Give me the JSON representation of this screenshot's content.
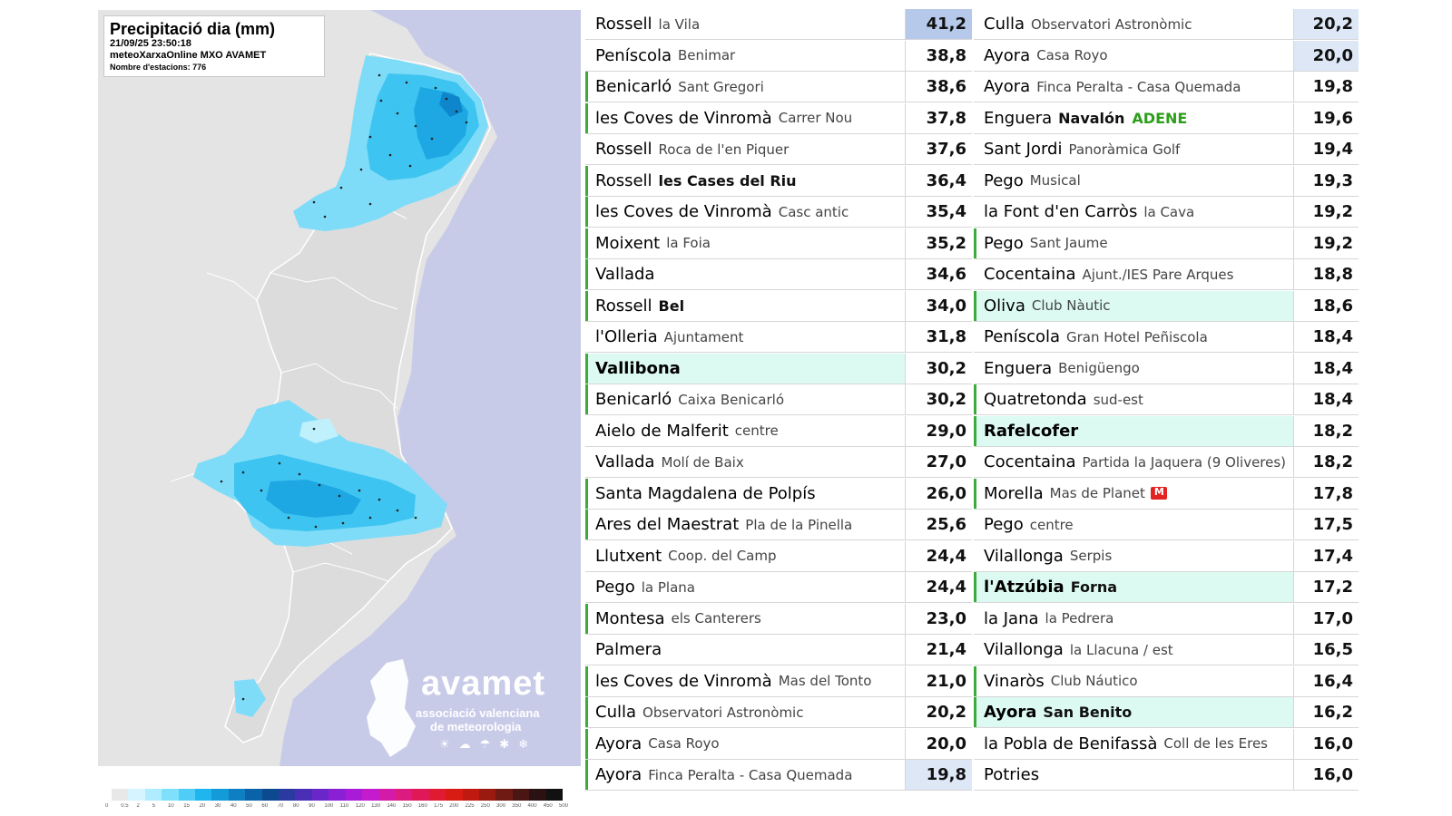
{
  "map": {
    "title": "Precipitació dia (mm)",
    "datetime": "21/09/25 23:50:18",
    "source": "meteoXarxaOnline MXO AVAMET",
    "stations_count": "Nombre d'estacions: 776",
    "brand_name": "avamet",
    "brand_line1": "associació valenciana",
    "brand_line2": "de meteorologia",
    "brand_icons": "☀☁☂✱❄",
    "scale_colors": [
      "#e8e8e8",
      "#d6f4ff",
      "#b0ecff",
      "#7ee0fb",
      "#4fcdf6",
      "#1fb5ee",
      "#139bd9",
      "#0d7fc2",
      "#0a63a8",
      "#0b4a8e",
      "#2b3aa0",
      "#4a2fb6",
      "#6a26c8",
      "#8a1fd6",
      "#a81cd8",
      "#c41ccc",
      "#d41ba8",
      "#dc1a80",
      "#e01858",
      "#e01a30",
      "#d81c14",
      "#c01a10",
      "#9a1a10",
      "#701a14",
      "#4a1614",
      "#2a1212",
      "#111111"
    ],
    "scale_labels": [
      "0",
      "0.5",
      "2",
      "5",
      "10",
      "15",
      "20",
      "30",
      "40",
      "50",
      "60",
      "70",
      "80",
      "90",
      "100",
      "110",
      "120",
      "130",
      "140",
      "150",
      "160",
      "175",
      "200",
      "225",
      "250",
      "300",
      "350",
      "400",
      "450",
      "500"
    ]
  },
  "left_table": [
    {
      "town": "Rossell",
      "station": "la Vila",
      "value": "41,2",
      "green": false,
      "hl": false,
      "bold": false,
      "sbold": false,
      "val_bg": "#b6c9ea"
    },
    {
      "town": "Peníscola",
      "station": "Benimar",
      "value": "38,8",
      "green": false,
      "hl": false,
      "bold": false,
      "sbold": false,
      "val_bg": "#ffffff"
    },
    {
      "town": "Benicarló",
      "station": "Sant Gregori",
      "value": "38,6",
      "green": true,
      "hl": false,
      "bold": false,
      "sbold": false,
      "val_bg": "#ffffff"
    },
    {
      "town": "les Coves de Vinromà",
      "station": "Carrer Nou",
      "value": "37,8",
      "green": true,
      "hl": false,
      "bold": false,
      "sbold": false,
      "val_bg": "#ffffff"
    },
    {
      "town": "Rossell",
      "station": "Roca de l'en Piquer",
      "value": "37,6",
      "green": false,
      "hl": false,
      "bold": false,
      "sbold": false,
      "val_bg": "#ffffff"
    },
    {
      "town": "Rossell",
      "station": "les Cases del Riu",
      "value": "36,4",
      "green": true,
      "hl": false,
      "bold": false,
      "sbold": true,
      "val_bg": "#ffffff"
    },
    {
      "town": "les Coves de Vinromà",
      "station": "Casc antic",
      "value": "35,4",
      "green": true,
      "hl": false,
      "bold": false,
      "sbold": false,
      "val_bg": "#ffffff"
    },
    {
      "town": "Moixent",
      "station": "la Foia",
      "value": "35,2",
      "green": true,
      "hl": false,
      "bold": false,
      "sbold": false,
      "val_bg": "#ffffff"
    },
    {
      "town": "Vallada",
      "station": "",
      "value": "34,6",
      "green": true,
      "hl": false,
      "bold": false,
      "sbold": false,
      "val_bg": "#ffffff"
    },
    {
      "town": "Rossell",
      "station": "Bel",
      "value": "34,0",
      "green": true,
      "hl": false,
      "bold": false,
      "sbold": true,
      "val_bg": "#ffffff"
    },
    {
      "town": "l'Olleria",
      "station": "Ajuntament",
      "value": "31,8",
      "green": false,
      "hl": false,
      "bold": false,
      "sbold": false,
      "val_bg": "#ffffff"
    },
    {
      "town": "Vallibona",
      "station": "",
      "value": "30,2",
      "green": true,
      "hl": true,
      "bold": true,
      "sbold": false,
      "val_bg": "#ffffff"
    },
    {
      "town": "Benicarló",
      "station": "Caixa Benicarló",
      "value": "30,2",
      "green": true,
      "hl": false,
      "bold": false,
      "sbold": false,
      "val_bg": "#ffffff"
    },
    {
      "town": "Aielo de Malferit",
      "station": "centre",
      "value": "29,0",
      "green": false,
      "hl": false,
      "bold": false,
      "sbold": false,
      "val_bg": "#ffffff"
    },
    {
      "town": "Vallada",
      "station": "Molí de Baix",
      "value": "27,0",
      "green": false,
      "hl": false,
      "bold": false,
      "sbold": false,
      "val_bg": "#ffffff"
    },
    {
      "town": "Santa Magdalena de Polpís",
      "station": "",
      "value": "26,0",
      "green": true,
      "hl": false,
      "bold": false,
      "sbold": false,
      "val_bg": "#ffffff"
    },
    {
      "town": "Ares del Maestrat",
      "station": "Pla de la Pinella",
      "value": "25,6",
      "green": true,
      "hl": false,
      "bold": false,
      "sbold": false,
      "val_bg": "#ffffff"
    },
    {
      "town": "Llutxent",
      "station": "Coop. del Camp",
      "value": "24,4",
      "green": false,
      "hl": false,
      "bold": false,
      "sbold": false,
      "val_bg": "#ffffff"
    },
    {
      "town": "Pego",
      "station": "la Plana",
      "value": "24,4",
      "green": false,
      "hl": false,
      "bold": false,
      "sbold": false,
      "val_bg": "#ffffff"
    },
    {
      "town": "Montesa",
      "station": "els Canterers",
      "value": "23,0",
      "green": true,
      "hl": false,
      "bold": false,
      "sbold": false,
      "val_bg": "#ffffff"
    },
    {
      "town": "Palmera",
      "station": "",
      "value": "21,4",
      "green": false,
      "hl": false,
      "bold": false,
      "sbold": false,
      "val_bg": "#ffffff"
    },
    {
      "town": "les Coves de Vinromà",
      "station": "Mas del Tonto",
      "value": "21,0",
      "green": true,
      "hl": false,
      "bold": false,
      "sbold": false,
      "val_bg": "#ffffff"
    },
    {
      "town": "Culla",
      "station": "Observatori Astronòmic",
      "value": "20,2",
      "green": true,
      "hl": false,
      "bold": false,
      "sbold": false,
      "val_bg": "#ffffff"
    },
    {
      "town": "Ayora",
      "station": "Casa Royo",
      "value": "20,0",
      "green": true,
      "hl": false,
      "bold": false,
      "sbold": false,
      "val_bg": "#ffffff"
    },
    {
      "town": "Ayora",
      "station": "Finca Peralta - Casa Quemada",
      "value": "19,8",
      "green": true,
      "hl": false,
      "bold": false,
      "sbold": false,
      "val_bg": "#dde7f6"
    }
  ],
  "right_table": [
    {
      "town": "Culla",
      "station": "Observatori Astronòmic",
      "value": "20,2",
      "green": false,
      "hl": false,
      "bold": false,
      "sbold": false,
      "val_bg": "#dde7f6"
    },
    {
      "town": "Ayora",
      "station": "Casa Royo",
      "value": "20,0",
      "green": false,
      "hl": false,
      "bold": false,
      "sbold": false,
      "val_bg": "#dde7f6"
    },
    {
      "town": "Ayora",
      "station": "Finca Peralta - Casa Quemada",
      "value": "19,8",
      "green": false,
      "hl": false,
      "bold": false,
      "sbold": false,
      "val_bg": "#ffffff"
    },
    {
      "town": "Enguera",
      "station": "Navalón",
      "tag": "ADENE",
      "value": "19,6",
      "green": false,
      "hl": false,
      "bold": false,
      "sbold": true,
      "val_bg": "#ffffff"
    },
    {
      "town": "Sant Jordi",
      "station": "Panoràmica Golf",
      "value": "19,4",
      "green": false,
      "hl": false,
      "bold": false,
      "sbold": false,
      "val_bg": "#ffffff"
    },
    {
      "town": "Pego",
      "station": "Musical",
      "value": "19,3",
      "green": false,
      "hl": false,
      "bold": false,
      "sbold": false,
      "val_bg": "#ffffff"
    },
    {
      "town": "la Font d'en Carròs",
      "station": "la Cava",
      "value": "19,2",
      "green": false,
      "hl": false,
      "bold": false,
      "sbold": false,
      "val_bg": "#ffffff"
    },
    {
      "town": "Pego",
      "station": "Sant Jaume",
      "value": "19,2",
      "green": true,
      "hl": false,
      "bold": false,
      "sbold": false,
      "val_bg": "#ffffff"
    },
    {
      "town": "Cocentaina",
      "station": "Ajunt./IES Pare Arques",
      "value": "18,8",
      "green": false,
      "hl": false,
      "bold": false,
      "sbold": false,
      "val_bg": "#ffffff"
    },
    {
      "town": "Oliva",
      "station": "Club Nàutic",
      "value": "18,6",
      "green": true,
      "hl": true,
      "bold": false,
      "sbold": false,
      "val_bg": "#ffffff"
    },
    {
      "town": "Peníscola",
      "station": "Gran Hotel Peñiscola",
      "value": "18,4",
      "green": false,
      "hl": false,
      "bold": false,
      "sbold": false,
      "val_bg": "#ffffff"
    },
    {
      "town": "Enguera",
      "station": "Benigüengo",
      "value": "18,4",
      "green": false,
      "hl": false,
      "bold": false,
      "sbold": false,
      "val_bg": "#ffffff"
    },
    {
      "town": "Quatretonda",
      "station": "sud-est",
      "value": "18,4",
      "green": true,
      "hl": false,
      "bold": false,
      "sbold": false,
      "val_bg": "#ffffff"
    },
    {
      "town": "Rafelcofer",
      "station": "",
      "value": "18,2",
      "green": true,
      "hl": true,
      "bold": true,
      "sbold": false,
      "val_bg": "#ffffff"
    },
    {
      "town": "Cocentaina",
      "station": "Partida la Jaquera (9 Oliveres)",
      "value": "18,2",
      "green": false,
      "hl": false,
      "bold": false,
      "sbold": false,
      "val_bg": "#ffffff"
    },
    {
      "town": "Morella",
      "station": "Mas de Planet",
      "badge": true,
      "value": "17,8",
      "green": true,
      "hl": false,
      "bold": false,
      "sbold": false,
      "val_bg": "#ffffff"
    },
    {
      "town": "Pego",
      "station": "centre",
      "value": "17,5",
      "green": false,
      "hl": false,
      "bold": false,
      "sbold": false,
      "val_bg": "#ffffff"
    },
    {
      "town": "Vilallonga",
      "station": "Serpis",
      "value": "17,4",
      "green": false,
      "hl": false,
      "bold": false,
      "sbold": false,
      "val_bg": "#ffffff"
    },
    {
      "town": "l'Atzúbia",
      "station": "Forna",
      "value": "17,2",
      "green": true,
      "hl": true,
      "bold": true,
      "sbold": true,
      "val_bg": "#ffffff"
    },
    {
      "town": "la Jana",
      "station": "la Pedrera",
      "value": "17,0",
      "green": false,
      "hl": false,
      "bold": false,
      "sbold": false,
      "val_bg": "#ffffff"
    },
    {
      "town": "Vilallonga",
      "station": "la Llacuna / est",
      "value": "16,5",
      "green": false,
      "hl": false,
      "bold": false,
      "sbold": false,
      "val_bg": "#ffffff"
    },
    {
      "town": "Vinaròs",
      "station": "Club Náutico",
      "value": "16,4",
      "green": true,
      "hl": false,
      "bold": false,
      "sbold": false,
      "val_bg": "#ffffff"
    },
    {
      "town": "Ayora",
      "station": "San Benito",
      "value": "16,2",
      "green": true,
      "hl": true,
      "bold": true,
      "sbold": true,
      "val_bg": "#ffffff"
    },
    {
      "town": "la Pobla de Benifassà",
      "station": "Coll de les Eres",
      "value": "16,0",
      "green": false,
      "hl": false,
      "bold": false,
      "sbold": false,
      "val_bg": "#ffffff"
    },
    {
      "town": "Potries",
      "station": "",
      "value": "16,0",
      "green": false,
      "hl": false,
      "bold": false,
      "sbold": false,
      "val_bg": "#ffffff"
    }
  ]
}
